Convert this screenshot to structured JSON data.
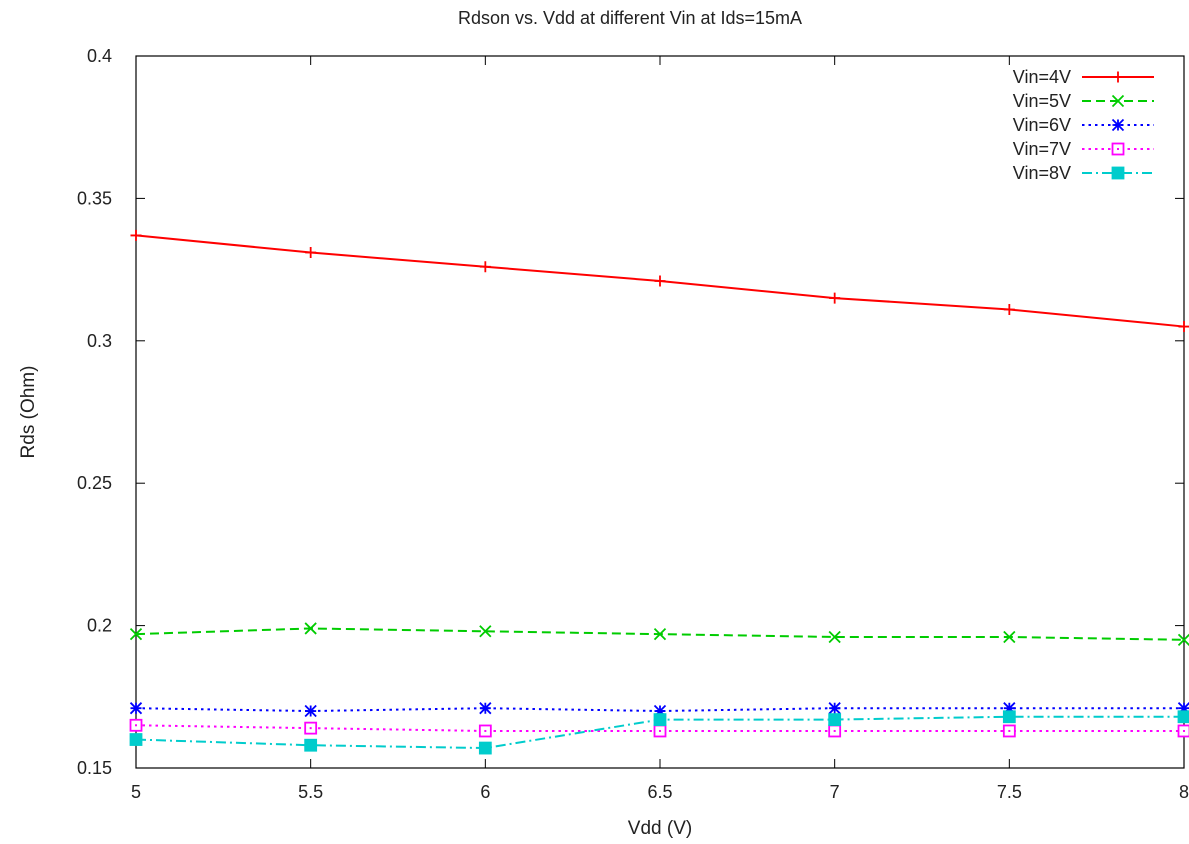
{
  "chart_data": {
    "type": "line",
    "title": "Rdson vs. Vdd at different Vin at Ids=15mA",
    "xlabel": "Vdd (V)",
    "ylabel": "Rds (Ohm)",
    "xlim": [
      5,
      8
    ],
    "ylim": [
      0.15,
      0.4
    ],
    "xticks": [
      "5",
      "5.5",
      "6",
      "6.5",
      "7",
      "7.5",
      "8"
    ],
    "yticks": [
      "0.15",
      "0.2",
      "0.25",
      "0.3",
      "0.35",
      "0.4"
    ],
    "grid": false,
    "legend_position": "top-right",
    "x": [
      5,
      5.5,
      6,
      6.5,
      7,
      7.5,
      8
    ],
    "series": [
      {
        "name": "Vin=4V",
        "values": [
          0.337,
          0.331,
          0.326,
          0.321,
          0.315,
          0.311,
          0.305
        ],
        "color": "#ff0000",
        "dash": "solid",
        "marker": "plus"
      },
      {
        "name": "Vin=5V",
        "values": [
          0.197,
          0.199,
          0.198,
          0.197,
          0.196,
          0.196,
          0.195
        ],
        "color": "#00cc00",
        "dash": "dashed",
        "marker": "cross"
      },
      {
        "name": "Vin=6V",
        "values": [
          0.171,
          0.17,
          0.171,
          0.17,
          0.171,
          0.171,
          0.171
        ],
        "color": "#0000ff",
        "dash": "dotted",
        "marker": "star"
      },
      {
        "name": "Vin=7V",
        "values": [
          0.165,
          0.164,
          0.163,
          0.163,
          0.163,
          0.163,
          0.163
        ],
        "color": "#ff00ff",
        "dash": "dotted",
        "marker": "open-square"
      },
      {
        "name": "Vin=8V",
        "values": [
          0.16,
          0.158,
          0.157,
          0.167,
          0.167,
          0.168,
          0.168
        ],
        "color": "#00cccc",
        "dash": "dashdot",
        "marker": "filled-square"
      }
    ]
  }
}
